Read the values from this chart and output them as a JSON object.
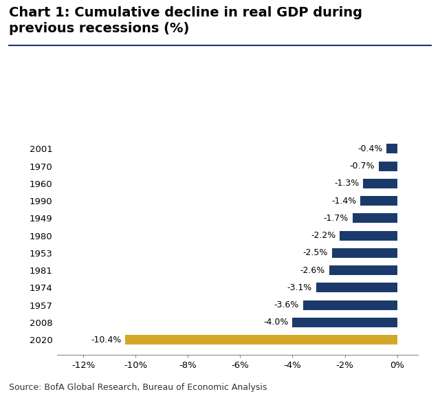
{
  "title_line1": "Chart 1: Cumulative decline in real GDP during",
  "title_line2": "previous recessions (%)",
  "categories": [
    "2020",
    "2008",
    "1957",
    "1974",
    "1981",
    "1953",
    "1980",
    "1949",
    "1990",
    "1960",
    "1970",
    "2001"
  ],
  "values": [
    -10.4,
    -4.0,
    -3.6,
    -3.1,
    -2.6,
    -2.5,
    -2.2,
    -1.7,
    -1.4,
    -1.3,
    -0.7,
    -0.4
  ],
  "labels": [
    "-10.4%",
    "-4.0%",
    "-3.6%",
    "-3.1%",
    "-2.6%",
    "-2.5%",
    "-2.2%",
    "-1.7%",
    "-1.4%",
    "-1.3%",
    "-0.7%",
    "-0.4%"
  ],
  "bar_colors": [
    "#D4A827",
    "#1B3A6B",
    "#1B3A6B",
    "#1B3A6B",
    "#1B3A6B",
    "#1B3A6B",
    "#1B3A6B",
    "#1B3A6B",
    "#1B3A6B",
    "#1B3A6B",
    "#1B3A6B",
    "#1B3A6B"
  ],
  "xlim": [
    -13.0,
    0.8
  ],
  "xticks": [
    -12,
    -10,
    -8,
    -6,
    -4,
    -2,
    0
  ],
  "xtick_labels": [
    "-12%",
    "-10%",
    "-8%",
    "-6%",
    "-4%",
    "-2%",
    "0%"
  ],
  "source_text": "Source: BofA Global Research, Bureau of Economic Analysis",
  "title_fontsize": 14,
  "label_fontsize": 9,
  "tick_fontsize": 9.5,
  "source_fontsize": 9,
  "background_color": "#FFFFFF",
  "title_color": "#000000",
  "bar_height": 0.55,
  "separator_color": "#1B3A6B"
}
